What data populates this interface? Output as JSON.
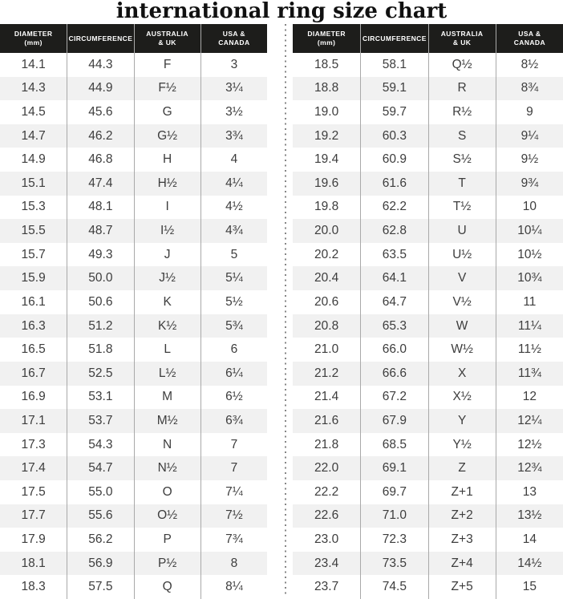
{
  "title": "international ring size chart",
  "chart_data": {
    "type": "table",
    "title": "international ring size chart",
    "columns": [
      {
        "line1": "DIAMETER",
        "line2": "(mm)"
      },
      {
        "line1": "CIRCUMFERENCE",
        "line2": ""
      },
      {
        "line1": "AUSTRALIA",
        "line2": "& UK"
      },
      {
        "line1": "USA &",
        "line2": "CANADA"
      }
    ],
    "tables": [
      {
        "name": "left",
        "rows": [
          [
            "14.1",
            "44.3",
            "F",
            "3"
          ],
          [
            "14.3",
            "44.9",
            "F½",
            "3¼"
          ],
          [
            "14.5",
            "45.6",
            "G",
            "3½"
          ],
          [
            "14.7",
            "46.2",
            "G½",
            "3¾"
          ],
          [
            "14.9",
            "46.8",
            "H",
            "4"
          ],
          [
            "15.1",
            "47.4",
            "H½",
            "4¼"
          ],
          [
            "15.3",
            "48.1",
            "I",
            "4½"
          ],
          [
            "15.5",
            "48.7",
            "I½",
            "4¾"
          ],
          [
            "15.7",
            "49.3",
            "J",
            "5"
          ],
          [
            "15.9",
            "50.0",
            "J½",
            "5¼"
          ],
          [
            "16.1",
            "50.6",
            "K",
            "5½"
          ],
          [
            "16.3",
            "51.2",
            "K½",
            "5¾"
          ],
          [
            "16.5",
            "51.8",
            "L",
            "6"
          ],
          [
            "16.7",
            "52.5",
            "L½",
            "6¼"
          ],
          [
            "16.9",
            "53.1",
            "M",
            "6½"
          ],
          [
            "17.1",
            "53.7",
            "M½",
            "6¾"
          ],
          [
            "17.3",
            "54.3",
            "N",
            "7"
          ],
          [
            "17.4",
            "54.7",
            "N½",
            "7"
          ],
          [
            "17.5",
            "55.0",
            "O",
            "7¼"
          ],
          [
            "17.7",
            "55.6",
            "O½",
            "7½"
          ],
          [
            "17.9",
            "56.2",
            "P",
            "7¾"
          ],
          [
            "18.1",
            "56.9",
            "P½",
            "8"
          ],
          [
            "18.3",
            "57.5",
            "Q",
            "8¼"
          ]
        ]
      },
      {
        "name": "right",
        "rows": [
          [
            "18.5",
            "58.1",
            "Q½",
            "8½"
          ],
          [
            "18.8",
            "59.1",
            "R",
            "8¾"
          ],
          [
            "19.0",
            "59.7",
            "R½",
            "9"
          ],
          [
            "19.2",
            "60.3",
            "S",
            "9¼"
          ],
          [
            "19.4",
            "60.9",
            "S½",
            "9½"
          ],
          [
            "19.6",
            "61.6",
            "T",
            "9¾"
          ],
          [
            "19.8",
            "62.2",
            "T½",
            "10"
          ],
          [
            "20.0",
            "62.8",
            "U",
            "10¼"
          ],
          [
            "20.2",
            "63.5",
            "U½",
            "10½"
          ],
          [
            "20.4",
            "64.1",
            "V",
            "10¾"
          ],
          [
            "20.6",
            "64.7",
            "V½",
            "11"
          ],
          [
            "20.8",
            "65.3",
            "W",
            "11¼"
          ],
          [
            "21.0",
            "66.0",
            "W½",
            "11½"
          ],
          [
            "21.2",
            "66.6",
            "X",
            "11¾"
          ],
          [
            "21.4",
            "67.2",
            "X½",
            "12"
          ],
          [
            "21.6",
            "67.9",
            "Y",
            "12¼"
          ],
          [
            "21.8",
            "68.5",
            "Y½",
            "12½"
          ],
          [
            "22.0",
            "69.1",
            "Z",
            "12¾"
          ],
          [
            "22.2",
            "69.7",
            "Z+1",
            "13"
          ],
          [
            "22.6",
            "71.0",
            "Z+2",
            "13½"
          ],
          [
            "23.0",
            "72.3",
            "Z+3",
            "14"
          ],
          [
            "23.4",
            "73.5",
            "Z+4",
            "14½"
          ],
          [
            "23.7",
            "74.5",
            "Z+5",
            "15"
          ]
        ]
      }
    ]
  },
  "colors": {
    "header_bg": "#1d1d1b",
    "row_alt": "#f1f1f1",
    "body_text": "#3d3d3d",
    "column_divider": "#a9a9a9",
    "dotted_divider": "#868686",
    "title_text": "#111111"
  }
}
